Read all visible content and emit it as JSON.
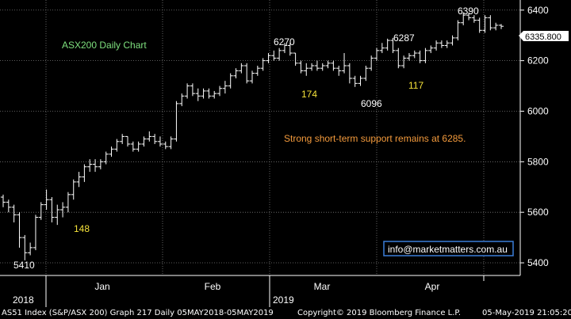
{
  "chart_data": {
    "type": "ohlc",
    "title": "ASX200 Daily Chart",
    "ylim": [
      5350,
      6440
    ],
    "y_ticks": [
      "6400",
      "6200",
      "6000",
      "5800",
      "5600",
      "5400"
    ],
    "last_value": "6335.800",
    "x_month_labels": [
      "Jan",
      "Feb",
      "Mar",
      "Apr"
    ],
    "x_year_labels": [
      "2018",
      "2019"
    ],
    "grid": true,
    "annotations": {
      "note": "Strong short-term support remains at 6285.",
      "website": "info@marketmatters.com.au",
      "price_labels": [
        "6390",
        "6287",
        "6270",
        "6096",
        "5410"
      ],
      "move_labels": [
        "148",
        "174",
        "117"
      ]
    },
    "bars": [
      [
        5660,
        5670,
        5620,
        5640
      ],
      [
        5640,
        5650,
        5600,
        5620
      ],
      [
        5620,
        5630,
        5560,
        5590
      ],
      [
        5590,
        5600,
        5460,
        5500
      ],
      [
        5500,
        5510,
        5410,
        5440
      ],
      [
        5440,
        5480,
        5430,
        5460
      ],
      [
        5460,
        5590,
        5450,
        5580
      ],
      [
        5580,
        5640,
        5570,
        5630
      ],
      [
        5630,
        5690,
        5610,
        5650
      ],
      [
        5650,
        5660,
        5560,
        5580
      ],
      [
        5580,
        5630,
        5550,
        5610
      ],
      [
        5610,
        5640,
        5580,
        5620
      ],
      [
        5620,
        5680,
        5600,
        5670
      ],
      [
        5670,
        5730,
        5650,
        5720
      ],
      [
        5720,
        5760,
        5700,
        5740
      ],
      [
        5740,
        5790,
        5720,
        5780
      ],
      [
        5780,
        5810,
        5760,
        5790
      ],
      [
        5790,
        5810,
        5760,
        5780
      ],
      [
        5780,
        5810,
        5770,
        5800
      ],
      [
        5800,
        5840,
        5790,
        5830
      ],
      [
        5830,
        5860,
        5820,
        5850
      ],
      [
        5850,
        5890,
        5840,
        5880
      ],
      [
        5880,
        5910,
        5870,
        5900
      ],
      [
        5900,
        5900,
        5860,
        5870
      ],
      [
        5870,
        5880,
        5840,
        5850
      ],
      [
        5850,
        5880,
        5840,
        5870
      ],
      [
        5870,
        5900,
        5860,
        5890
      ],
      [
        5890,
        5920,
        5880,
        5900
      ],
      [
        5900,
        5910,
        5870,
        5880
      ],
      [
        5880,
        5900,
        5860,
        5870
      ],
      [
        5870,
        5880,
        5850,
        5860
      ],
      [
        5860,
        5900,
        5850,
        5890
      ],
      [
        5890,
        6040,
        5880,
        6030
      ],
      [
        6030,
        6070,
        6020,
        6060
      ],
      [
        6060,
        6110,
        6050,
        6100
      ],
      [
        6100,
        6110,
        6060,
        6070
      ],
      [
        6070,
        6090,
        6040,
        6060
      ],
      [
        6060,
        6090,
        6050,
        6080
      ],
      [
        6080,
        6090,
        6050,
        6060
      ],
      [
        6060,
        6080,
        6050,
        6070
      ],
      [
        6070,
        6100,
        6060,
        6090
      ],
      [
        6090,
        6120,
        6070,
        6100
      ],
      [
        6100,
        6150,
        6090,
        6140
      ],
      [
        6140,
        6170,
        6130,
        6160
      ],
      [
        6160,
        6190,
        6150,
        6180
      ],
      [
        6180,
        6190,
        6110,
        6120
      ],
      [
        6120,
        6160,
        6110,
        6150
      ],
      [
        6150,
        6180,
        6140,
        6170
      ],
      [
        6170,
        6210,
        6160,
        6200
      ],
      [
        6200,
        6230,
        6190,
        6220
      ],
      [
        6220,
        6240,
        6200,
        6210
      ],
      [
        6210,
        6250,
        6200,
        6240
      ],
      [
        6240,
        6270,
        6230,
        6260
      ],
      [
        6260,
        6270,
        6220,
        6230
      ],
      [
        6230,
        6230,
        6180,
        6190
      ],
      [
        6190,
        6200,
        6150,
        6160
      ],
      [
        6160,
        6190,
        6140,
        6170
      ],
      [
        6170,
        6190,
        6160,
        6180
      ],
      [
        6180,
        6200,
        6160,
        6170
      ],
      [
        6170,
        6190,
        6160,
        6180
      ],
      [
        6180,
        6200,
        6170,
        6190
      ],
      [
        6190,
        6200,
        6160,
        6170
      ],
      [
        6170,
        6180,
        6140,
        6160
      ],
      [
        6160,
        6230,
        6150,
        6180
      ],
      [
        6180,
        6190,
        6110,
        6130
      ],
      [
        6130,
        6140,
        6096,
        6110
      ],
      [
        6110,
        6140,
        6100,
        6130
      ],
      [
        6130,
        6180,
        6120,
        6170
      ],
      [
        6170,
        6220,
        6160,
        6210
      ],
      [
        6210,
        6250,
        6200,
        6240
      ],
      [
        6240,
        6270,
        6230,
        6250
      ],
      [
        6250,
        6287,
        6240,
        6280
      ],
      [
        6280,
        6290,
        6230,
        6240
      ],
      [
        6240,
        6250,
        6170,
        6180
      ],
      [
        6180,
        6220,
        6170,
        6210
      ],
      [
        6210,
        6230,
        6200,
        6220
      ],
      [
        6220,
        6240,
        6210,
        6230
      ],
      [
        6230,
        6240,
        6190,
        6200
      ],
      [
        6200,
        6250,
        6190,
        6240
      ],
      [
        6240,
        6260,
        6230,
        6250
      ],
      [
        6250,
        6280,
        6240,
        6270
      ],
      [
        6270,
        6280,
        6250,
        6260
      ],
      [
        6260,
        6280,
        6250,
        6270
      ],
      [
        6270,
        6300,
        6260,
        6290
      ],
      [
        6290,
        6360,
        6280,
        6350
      ],
      [
        6350,
        6390,
        6340,
        6380
      ],
      [
        6380,
        6390,
        6360,
        6370
      ],
      [
        6370,
        6380,
        6350,
        6360
      ],
      [
        6360,
        6370,
        6310,
        6320
      ],
      [
        6320,
        6380,
        6310,
        6370
      ],
      [
        6370,
        6380,
        6320,
        6330
      ],
      [
        6330,
        6350,
        6320,
        6340
      ],
      [
        6340,
        6345,
        6325,
        6336
      ]
    ]
  },
  "footer": {
    "index": "AS51 Index (S&P/ASX 200) Graph 217  Daily 05MAY2018-05MAY2019",
    "copyright": "Copyright© 2019 Bloomberg Finance L.P.",
    "timestamp": "05-May-2019 21:05:20"
  },
  "colors": {
    "background": "#000000",
    "grid": "#7a7a7a",
    "bars": "#ffffff",
    "title": "#7ee07e",
    "note": "#f39a3c",
    "move_labels": "#f5e23a",
    "website_border": "#3b7dd8"
  }
}
